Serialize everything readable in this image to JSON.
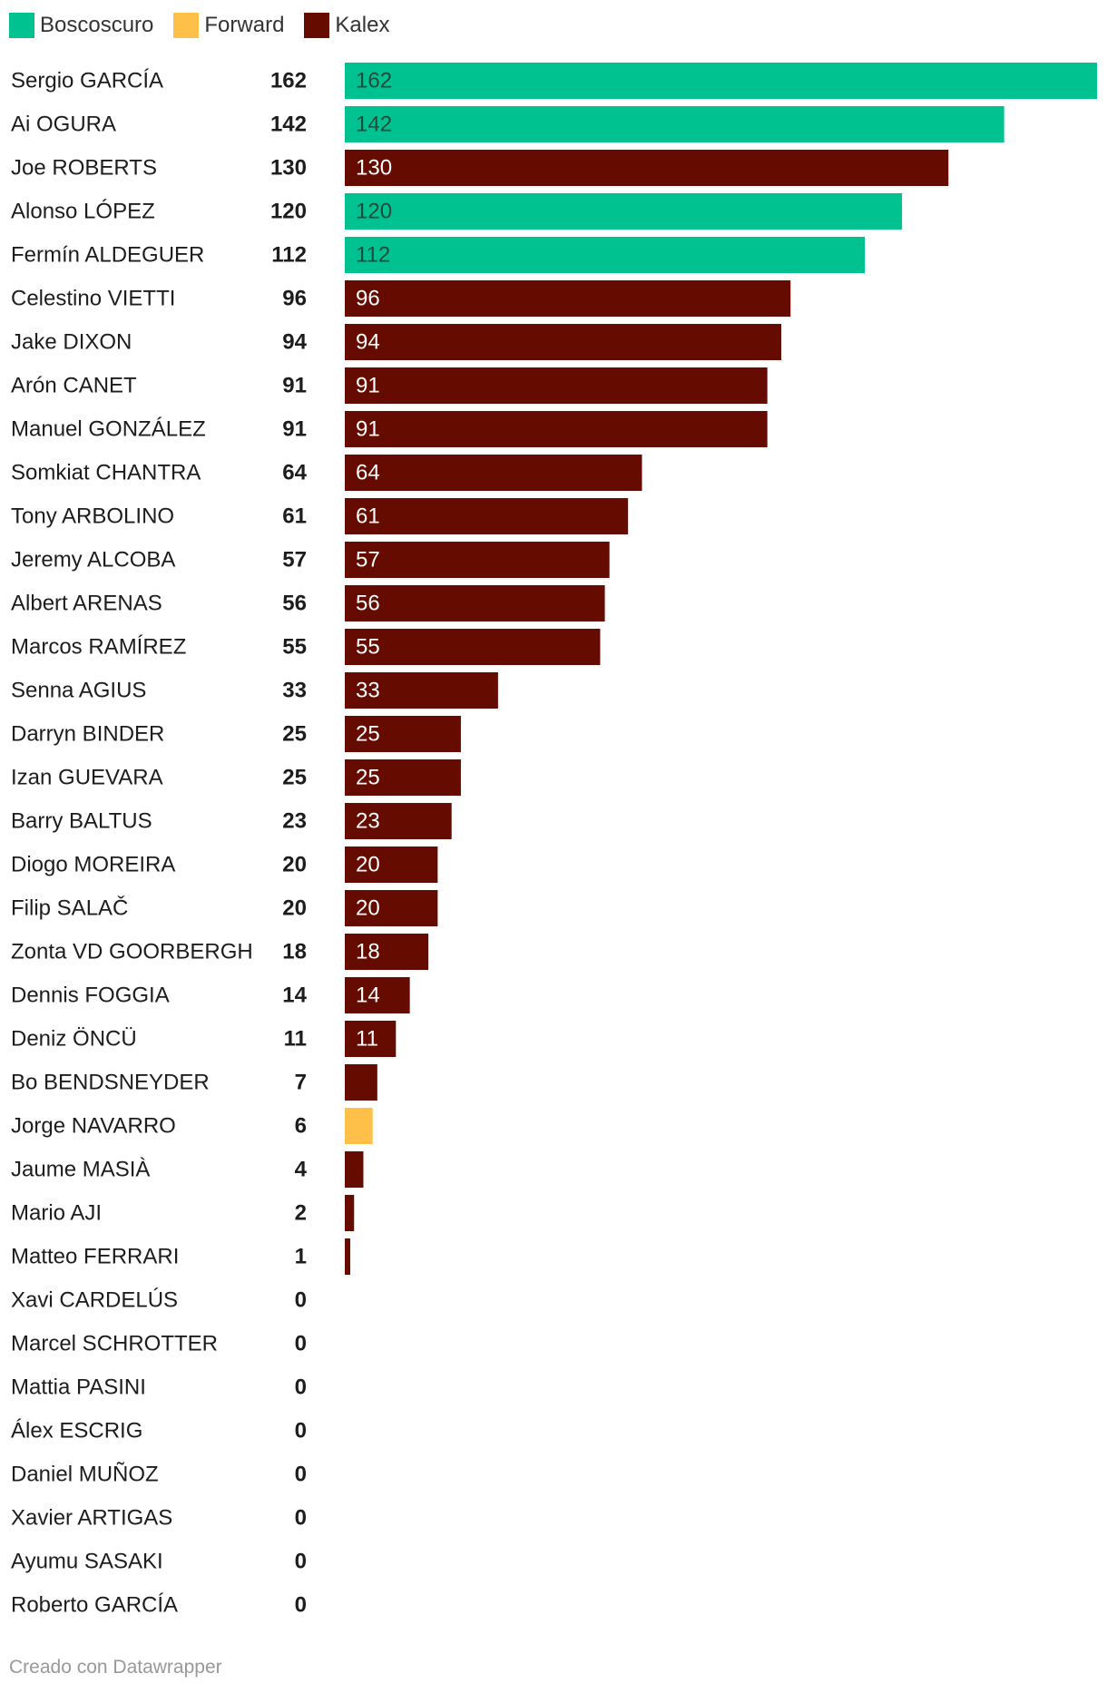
{
  "legend": [
    {
      "name": "Boscoscuro",
      "color": "#00c290"
    },
    {
      "name": "Forward",
      "color": "#ffc04a"
    },
    {
      "name": "Kalex",
      "color": "#650b00"
    }
  ],
  "footer": "Creado con Datawrapper",
  "chart_data": {
    "type": "bar",
    "orientation": "horizontal",
    "legend_position": "top-left",
    "xlim": [
      0,
      162
    ],
    "grid": false,
    "rows": [
      {
        "name": "Sergio GARCÍA",
        "value": 162,
        "team": "Boscoscuro"
      },
      {
        "name": "Ai OGURA",
        "value": 142,
        "team": "Boscoscuro"
      },
      {
        "name": "Joe ROBERTS",
        "value": 130,
        "team": "Kalex"
      },
      {
        "name": "Alonso LÓPEZ",
        "value": 120,
        "team": "Boscoscuro"
      },
      {
        "name": "Fermín ALDEGUER",
        "value": 112,
        "team": "Boscoscuro"
      },
      {
        "name": "Celestino VIETTI",
        "value": 96,
        "team": "Kalex"
      },
      {
        "name": "Jake DIXON",
        "value": 94,
        "team": "Kalex"
      },
      {
        "name": "Arón CANET",
        "value": 91,
        "team": "Kalex"
      },
      {
        "name": "Manuel GONZÁLEZ",
        "value": 91,
        "team": "Kalex"
      },
      {
        "name": "Somkiat CHANTRA",
        "value": 64,
        "team": "Kalex"
      },
      {
        "name": "Tony ARBOLINO",
        "value": 61,
        "team": "Kalex"
      },
      {
        "name": "Jeremy ALCOBA",
        "value": 57,
        "team": "Kalex"
      },
      {
        "name": "Albert ARENAS",
        "value": 56,
        "team": "Kalex"
      },
      {
        "name": "Marcos RAMÍREZ",
        "value": 55,
        "team": "Kalex"
      },
      {
        "name": "Senna AGIUS",
        "value": 33,
        "team": "Kalex"
      },
      {
        "name": "Darryn BINDER",
        "value": 25,
        "team": "Kalex"
      },
      {
        "name": "Izan GUEVARA",
        "value": 25,
        "team": "Kalex"
      },
      {
        "name": "Barry BALTUS",
        "value": 23,
        "team": "Kalex"
      },
      {
        "name": "Diogo MOREIRA",
        "value": 20,
        "team": "Kalex"
      },
      {
        "name": "Filip SALAČ",
        "value": 20,
        "team": "Kalex"
      },
      {
        "name": "Zonta VD GOORBERGH",
        "value": 18,
        "team": "Kalex"
      },
      {
        "name": "Dennis FOGGIA",
        "value": 14,
        "team": "Kalex"
      },
      {
        "name": "Deniz ÖNCÜ",
        "value": 11,
        "team": "Kalex"
      },
      {
        "name": "Bo BENDSNEYDER",
        "value": 7,
        "team": "Kalex"
      },
      {
        "name": "Jorge NAVARRO",
        "value": 6,
        "team": "Forward"
      },
      {
        "name": "Jaume MASIÀ",
        "value": 4,
        "team": "Kalex"
      },
      {
        "name": "Mario AJI",
        "value": 2,
        "team": "Kalex"
      },
      {
        "name": "Matteo FERRARI",
        "value": 1,
        "team": "Kalex"
      },
      {
        "name": "Xavi CARDELÚS",
        "value": 0,
        "team": ""
      },
      {
        "name": "Marcel SCHROTTER",
        "value": 0,
        "team": ""
      },
      {
        "name": "Mattia PASINI",
        "value": 0,
        "team": ""
      },
      {
        "name": "Álex ESCRIG",
        "value": 0,
        "team": ""
      },
      {
        "name": "Daniel MUÑOZ",
        "value": 0,
        "team": ""
      },
      {
        "name": "Xavier ARTIGAS",
        "value": 0,
        "team": ""
      },
      {
        "name": "Ayumu SASAKI",
        "value": 0,
        "team": ""
      },
      {
        "name": "Roberto GARCÍA",
        "value": 0,
        "team": ""
      }
    ]
  }
}
